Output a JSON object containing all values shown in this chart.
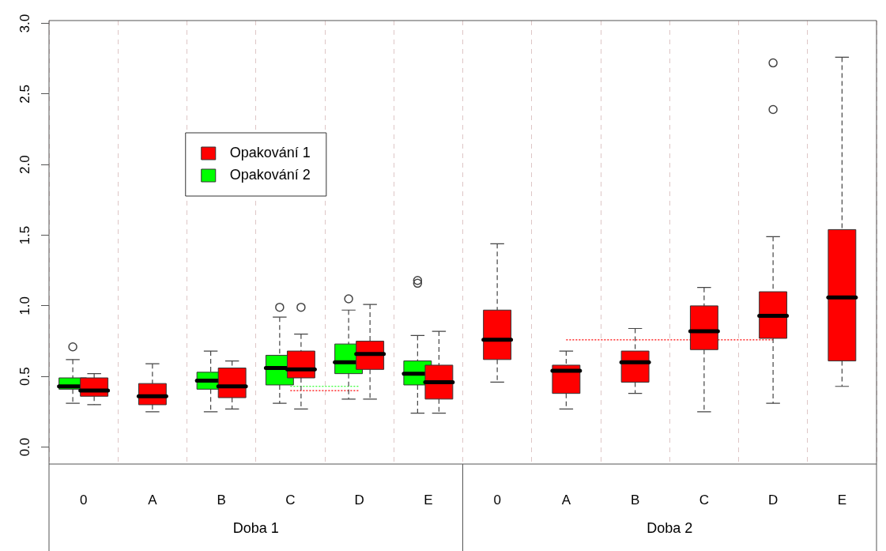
{
  "chart_data": {
    "type": "box",
    "categories": [
      "0",
      "A",
      "B",
      "C",
      "D",
      "E",
      "0",
      "A",
      "B",
      "C",
      "D",
      "E"
    ],
    "annotations": [
      "Doba 1",
      "Doba 2"
    ],
    "ylim": [
      -0.12,
      3.02
    ],
    "yticks": [
      {
        "value": 0,
        "label": "0.0"
      },
      {
        "value": 0.5,
        "label": "0.5"
      },
      {
        "value": 1,
        "label": "1.0"
      },
      {
        "value": 1.5,
        "label": "1.5"
      },
      {
        "value": 2,
        "label": "2.0"
      },
      {
        "value": 2.5,
        "label": "2.5"
      },
      {
        "value": 3,
        "label": "3.0"
      }
    ],
    "grid": "x",
    "legend": "top left",
    "series": [
      {
        "name": "Opakování 1",
        "color": "#ff0000",
        "boxes": [
          {
            "low": 0.3,
            "q1": 0.36,
            "median": 0.4,
            "q3": 0.49,
            "high": 0.52
          },
          {
            "low": 0.25,
            "q1": 0.3,
            "median": 0.36,
            "q3": 0.45,
            "high": 0.59
          },
          {
            "low": 0.27,
            "q1": 0.35,
            "median": 0.43,
            "q3": 0.56,
            "high": 0.61
          },
          {
            "low": 0.27,
            "q1": 0.49,
            "median": 0.55,
            "q3": 0.68,
            "high": 0.8,
            "outliers": [
              0.99
            ]
          },
          {
            "low": 0.34,
            "q1": 0.55,
            "median": 0.66,
            "q3": 0.75,
            "high": 1.01
          },
          {
            "low": 0.24,
            "q1": 0.34,
            "median": 0.46,
            "q3": 0.58,
            "high": 0.82
          },
          {
            "low": 0.46,
            "q1": 0.62,
            "median": 0.76,
            "q3": 0.97,
            "high": 1.44
          },
          {
            "low": 0.27,
            "q1": 0.38,
            "median": 0.54,
            "q3": 0.58,
            "high": 0.68
          },
          {
            "low": 0.38,
            "q1": 0.46,
            "median": 0.6,
            "q3": 0.68,
            "high": 0.84
          },
          {
            "low": 0.25,
            "q1": 0.69,
            "median": 0.82,
            "q3": 1.0,
            "high": 1.13
          },
          {
            "low": 0.31,
            "q1": 0.77,
            "median": 0.93,
            "q3": 1.1,
            "high": 1.49,
            "outliers": [
              2.39,
              2.72
            ]
          },
          {
            "low": 0.43,
            "q1": 0.61,
            "median": 1.06,
            "q3": 1.54,
            "high": 2.76
          }
        ]
      },
      {
        "name": "Opakování 2",
        "color": "#00ff00",
        "boxes": [
          {
            "low": 0.31,
            "q1": 0.41,
            "median": 0.43,
            "q3": 0.49,
            "high": 0.62,
            "outliers": [
              0.71
            ]
          },
          null,
          {
            "low": 0.25,
            "q1": 0.41,
            "median": 0.47,
            "q3": 0.53,
            "high": 0.68
          },
          {
            "low": 0.31,
            "q1": 0.44,
            "median": 0.56,
            "q3": 0.65,
            "high": 0.92,
            "outliers": [
              0.99
            ]
          },
          {
            "low": 0.34,
            "q1": 0.52,
            "median": 0.6,
            "q3": 0.73,
            "high": 0.97,
            "outliers": [
              1.05
            ]
          },
          {
            "low": 0.24,
            "q1": 0.44,
            "median": 0.52,
            "q3": 0.61,
            "high": 0.79,
            "outliers": [
              1.16,
              1.18
            ]
          },
          null,
          null,
          null,
          null,
          null,
          null
        ]
      },
      {
        "type": "line",
        "color": "#00ff00",
        "line_style": "dotted",
        "values": [
          null,
          null,
          null,
          0.43,
          0.43,
          null,
          null,
          null,
          null,
          null,
          null,
          null
        ]
      },
      {
        "type": "line",
        "color": "#ff0000",
        "line_style": "dotted",
        "values": [
          null,
          null,
          null,
          0.4,
          0.4,
          null,
          null,
          null,
          null,
          null,
          null,
          null
        ]
      },
      {
        "type": "line",
        "color": "#ff0000",
        "line_style": "dotted",
        "values": [
          null,
          null,
          null,
          null,
          null,
          null,
          null,
          0.76,
          0.76,
          0.76,
          0.76,
          null
        ]
      }
    ]
  }
}
